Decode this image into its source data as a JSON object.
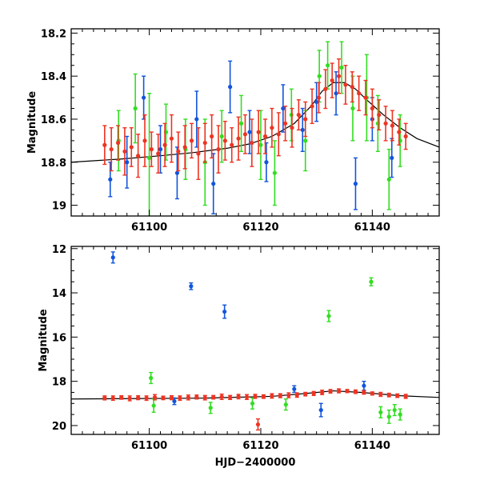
{
  "chart_data": [
    {
      "type": "scatter",
      "panel": "top",
      "xlabel": "",
      "ylabel": "Magnitude",
      "xlim": [
        61086,
        61152
      ],
      "ylim": [
        19.05,
        18.18
      ],
      "yreversed": true,
      "x_ticks": [
        61100,
        61120,
        61140
      ],
      "x_tick_labels": [
        "61100",
        "61120",
        "61140"
      ],
      "y_ticks": [
        18.2,
        18.4,
        18.6,
        18.8,
        19.0
      ],
      "y_tick_labels": [
        "18.2",
        "18.4",
        "18.6",
        "18.8",
        "19"
      ],
      "model_curve": {
        "x": [
          61086,
          61095,
          61102,
          61108,
          61114,
          61118,
          61122,
          61126,
          61129,
          61131,
          61133,
          61135,
          61137,
          61139,
          61142,
          61145,
          61148,
          61152
        ],
        "y": [
          18.8,
          18.785,
          18.77,
          18.755,
          18.735,
          18.715,
          18.68,
          18.62,
          18.54,
          18.47,
          18.43,
          18.43,
          18.46,
          18.51,
          18.58,
          18.64,
          18.69,
          18.73
        ]
      },
      "series": [
        {
          "name": "red",
          "color": "#ee3322",
          "x": [
            61092.0,
            61093.2,
            61094.4,
            61095.6,
            61096.8,
            61098.0,
            61099.2,
            61100.4,
            61101.6,
            61102.8,
            61104.0,
            61105.2,
            61106.4,
            61107.6,
            61108.8,
            61110.0,
            61111.2,
            61112.4,
            61113.6,
            61114.8,
            61116.0,
            61117.2,
            61118.4,
            61119.6,
            61120.8,
            61122.0,
            61123.2,
            61124.4,
            61125.6,
            61126.8,
            61128.0,
            61129.2,
            61130.4,
            61131.6,
            61132.8,
            61134.0,
            61135.2,
            61136.4,
            61137.6,
            61138.8,
            61140.0,
            61141.2,
            61142.4,
            61143.6,
            61144.8,
            61146.0
          ],
          "y": [
            18.72,
            18.74,
            18.71,
            18.75,
            18.73,
            18.77,
            18.7,
            18.74,
            18.76,
            18.72,
            18.69,
            18.75,
            18.73,
            18.7,
            18.76,
            18.71,
            18.68,
            18.74,
            18.7,
            18.72,
            18.69,
            18.67,
            18.71,
            18.66,
            18.68,
            18.64,
            18.67,
            18.62,
            18.64,
            18.58,
            18.6,
            18.54,
            18.5,
            18.46,
            18.42,
            18.4,
            18.44,
            18.45,
            18.48,
            18.5,
            18.55,
            18.58,
            18.62,
            18.63,
            18.66,
            18.68
          ],
          "err": [
            0.09,
            0.1,
            0.08,
            0.11,
            0.09,
            0.1,
            0.12,
            0.08,
            0.09,
            0.1,
            0.11,
            0.09,
            0.1,
            0.08,
            0.12,
            0.09,
            0.1,
            0.11,
            0.09,
            0.08,
            0.1,
            0.09,
            0.11,
            0.1,
            0.08,
            0.09,
            0.1,
            0.08,
            0.09,
            0.07,
            0.08,
            0.08,
            0.07,
            0.09,
            0.08,
            0.08,
            0.09,
            0.07,
            0.08,
            0.08,
            0.09,
            0.07,
            0.08,
            0.07,
            0.06,
            0.06
          ]
        },
        {
          "name": "green",
          "color": "#33dd22",
          "x": [
            61094.5,
            61097.5,
            61100.0,
            61103.0,
            61106.5,
            61110.0,
            61113.0,
            61116.5,
            61120.0,
            61122.5,
            61125.5,
            61128.0,
            61130.5,
            61132.0,
            61134.5,
            61136.5,
            61139.0,
            61141.0,
            61143.0,
            61145.0
          ],
          "y": [
            18.7,
            18.55,
            18.78,
            18.66,
            18.74,
            18.8,
            18.68,
            18.62,
            18.72,
            18.85,
            18.58,
            18.7,
            18.4,
            18.35,
            18.36,
            18.55,
            18.5,
            18.62,
            18.88,
            18.7
          ],
          "err": [
            0.14,
            0.16,
            0.3,
            0.13,
            0.14,
            0.2,
            0.12,
            0.13,
            0.16,
            0.15,
            0.12,
            0.14,
            0.12,
            0.11,
            0.12,
            0.15,
            0.2,
            0.13,
            0.14,
            0.12
          ]
        },
        {
          "name": "blue",
          "color": "#1155dd",
          "x": [
            61093.0,
            61096.0,
            61099.0,
            61102.0,
            61105.0,
            61108.5,
            61111.5,
            61114.5,
            61118.0,
            61121.0,
            61124.0,
            61127.5,
            61130.0,
            61133.5,
            61137.0,
            61140.0,
            61143.5
          ],
          "y": [
            18.88,
            18.8,
            18.5,
            18.74,
            18.85,
            18.6,
            18.9,
            18.45,
            18.66,
            18.8,
            18.55,
            18.65,
            18.52,
            18.48,
            18.9,
            18.6,
            18.78
          ],
          "err": [
            0.08,
            0.12,
            0.1,
            0.11,
            0.12,
            0.13,
            0.14,
            0.12,
            0.1,
            0.09,
            0.11,
            0.1,
            0.09,
            0.1,
            0.12,
            0.1,
            0.09
          ]
        }
      ]
    },
    {
      "type": "scatter",
      "panel": "bottom",
      "xlabel": "HJD−2400000",
      "ylabel": "Magnitude",
      "xlim": [
        61086,
        61152
      ],
      "ylim": [
        20.4,
        11.9
      ],
      "yreversed": true,
      "x_ticks": [
        61100,
        61120,
        61140
      ],
      "x_tick_labels": [
        "61100",
        "61120",
        "61140"
      ],
      "y_ticks": [
        12,
        14,
        16,
        18,
        20
      ],
      "y_tick_labels": [
        "12",
        "14",
        "16",
        "18",
        "20"
      ],
      "model_curve": {
        "x": [
          61086,
          61110,
          61122,
          61128,
          61133,
          61138,
          61145,
          61152
        ],
        "y": [
          18.8,
          18.76,
          18.68,
          18.55,
          18.43,
          18.5,
          18.65,
          18.73
        ]
      },
      "series": [
        {
          "name": "red",
          "color": "#ee3322",
          "x": [
            61092.0,
            61093.5,
            61095.0,
            61096.5,
            61098.0,
            61099.5,
            61101.0,
            61102.5,
            61104.0,
            61105.5,
            61107.0,
            61108.5,
            61110.0,
            61111.5,
            61113.0,
            61114.5,
            61116.0,
            61117.5,
            61119.0,
            61120.5,
            61122.0,
            61123.5,
            61125.0,
            61126.5,
            61128.0,
            61129.5,
            61131.0,
            61132.5,
            61134.0,
            61135.5,
            61137.0,
            61138.5,
            61140.0,
            61141.5,
            61143.0,
            61144.5,
            61146.0,
            61119.5
          ],
          "y": [
            18.75,
            18.76,
            18.73,
            18.77,
            18.74,
            18.76,
            18.72,
            18.75,
            18.74,
            18.76,
            18.73,
            18.71,
            18.74,
            18.72,
            18.7,
            18.73,
            18.69,
            18.71,
            18.68,
            18.69,
            18.66,
            18.65,
            18.63,
            18.62,
            18.58,
            18.55,
            18.5,
            18.45,
            18.43,
            18.44,
            18.47,
            18.5,
            18.55,
            18.59,
            18.62,
            18.65,
            18.68,
            19.95
          ],
          "err": [
            0.09,
            0.1,
            0.08,
            0.11,
            0.09,
            0.1,
            0.12,
            0.08,
            0.09,
            0.1,
            0.11,
            0.09,
            0.1,
            0.08,
            0.12,
            0.09,
            0.1,
            0.11,
            0.09,
            0.08,
            0.1,
            0.09,
            0.11,
            0.1,
            0.08,
            0.09,
            0.1,
            0.08,
            0.09,
            0.07,
            0.08,
            0.08,
            0.07,
            0.09,
            0.08,
            0.08,
            0.09,
            0.25
          ]
        },
        {
          "name": "green",
          "color": "#33dd22",
          "x": [
            61100.3,
            61100.8,
            61111.0,
            61118.5,
            61124.5,
            61132.2,
            61139.8,
            61141.5,
            61143.0,
            61144.0,
            61145.0
          ],
          "y": [
            17.85,
            19.1,
            19.2,
            19.0,
            19.05,
            15.05,
            13.5,
            19.4,
            19.6,
            19.3,
            19.5
          ],
          "err": [
            0.25,
            0.3,
            0.25,
            0.25,
            0.25,
            0.25,
            0.18,
            0.25,
            0.3,
            0.25,
            0.25
          ]
        },
        {
          "name": "blue",
          "color": "#1155dd",
          "x": [
            61093.5,
            61107.5,
            61113.5,
            61130.8,
            61138.5,
            61104.5,
            61126.0
          ],
          "y": [
            12.4,
            13.7,
            14.85,
            19.3,
            18.2,
            18.9,
            18.35
          ],
          "err": [
            0.25,
            0.15,
            0.3,
            0.3,
            0.2,
            0.15,
            0.15
          ]
        }
      ]
    }
  ]
}
